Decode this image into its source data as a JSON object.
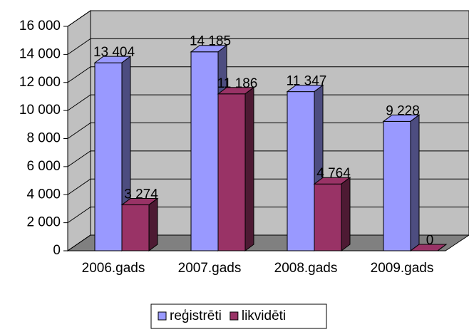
{
  "chart_data": {
    "type": "bar3d",
    "categories": [
      "2006.gads",
      "2007.gads",
      "2008.gads",
      "2009.gads"
    ],
    "series": [
      {
        "name": "reģistrēti",
        "color": "#9999ff",
        "values": [
          13404,
          14185,
          11347,
          9228
        ],
        "value_labels": [
          "13 404",
          "14 185",
          "11 347",
          "9 228"
        ]
      },
      {
        "name": "likvidēti",
        "color": "#993366",
        "values": [
          3274,
          11186,
          4764,
          0
        ],
        "value_labels": [
          "3 274",
          "11 186",
          "4 764",
          "0"
        ]
      }
    ],
    "ylim": [
      0,
      16000
    ],
    "yticks": [
      {
        "value": 0,
        "label": "0"
      },
      {
        "value": 2000,
        "label": "2 000"
      },
      {
        "value": 4000,
        "label": "4 000"
      },
      {
        "value": 6000,
        "label": "6 000"
      },
      {
        "value": 8000,
        "label": "8 000"
      },
      {
        "value": 10000,
        "label": "10 000"
      },
      {
        "value": 12000,
        "label": "12 000"
      },
      {
        "value": 14000,
        "label": "14 000"
      },
      {
        "value": 16000,
        "label": "16 000"
      }
    ],
    "grid": true,
    "legend": "bottom"
  }
}
